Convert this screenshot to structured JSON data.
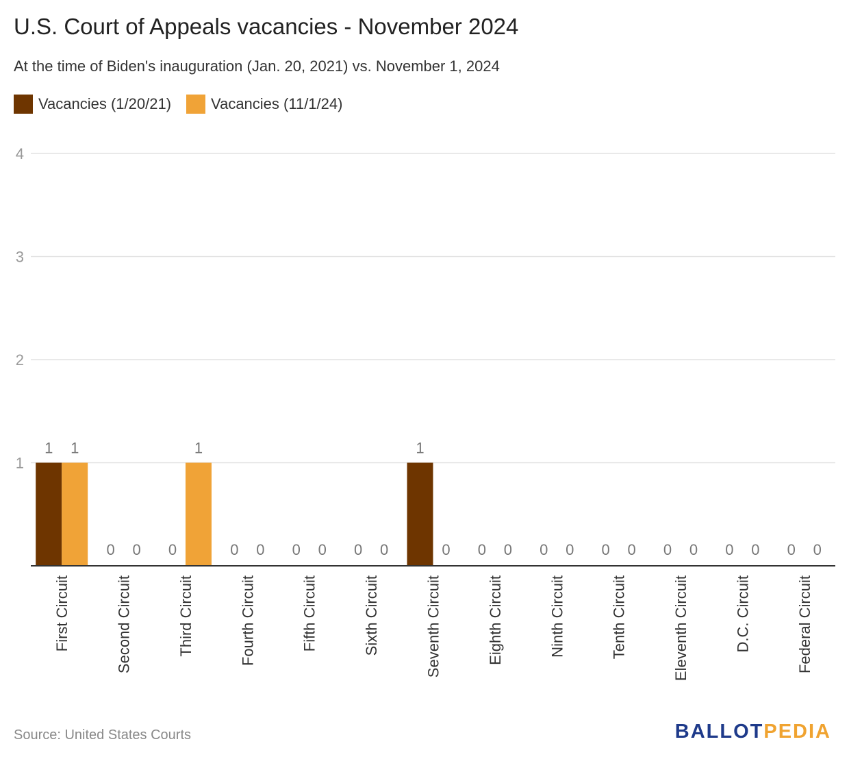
{
  "title": "U.S. Court of Appeals vacancies - November 2024",
  "subtitle": "At the time of Biden's inauguration (Jan. 20, 2021) vs. November 1, 2024",
  "source": "Source: United States Courts",
  "logo": {
    "part1": "BALLOT",
    "part2": "PEDIA",
    "color1": "#1e3a8a",
    "color2": "#f0a330"
  },
  "chart_data": {
    "type": "bar",
    "categories": [
      "First Circuit",
      "Second Circuit",
      "Third Circuit",
      "Fourth Circuit",
      "Fifth Circuit",
      "Sixth Circuit",
      "Seventh Circuit",
      "Eighth Circuit",
      "Ninth Circuit",
      "Tenth Circuit",
      "Eleventh Circuit",
      "D.C. Circuit",
      "Federal Circuit"
    ],
    "series": [
      {
        "name": "Vacancies (1/20/21)",
        "color": "#6e3500",
        "values": [
          1,
          0,
          0,
          0,
          0,
          0,
          1,
          0,
          0,
          0,
          0,
          0,
          0
        ]
      },
      {
        "name": "Vacancies (11/1/24)",
        "color": "#f0a337",
        "values": [
          1,
          0,
          1,
          0,
          0,
          0,
          0,
          0,
          0,
          0,
          0,
          0,
          0
        ]
      }
    ],
    "ylim": [
      0,
      4
    ],
    "yticks": [
      1,
      2,
      3,
      4
    ],
    "grid": true,
    "legend_position": "top-left"
  }
}
